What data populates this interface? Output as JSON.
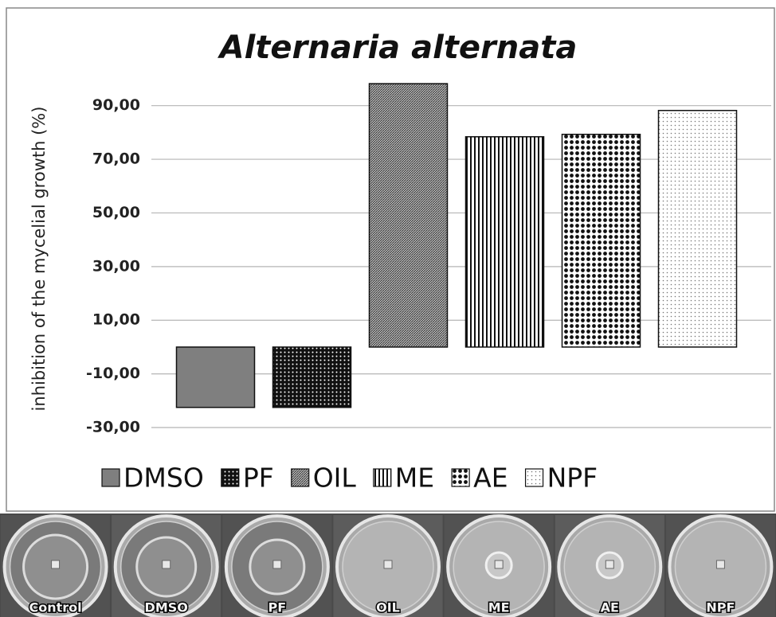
{
  "chart_data": {
    "type": "bar",
    "title": "Alternaria alternata",
    "y_label": "inhibition of the mycelial growth (%)",
    "categories": [
      null
    ],
    "series": [
      {
        "name": "DMSO",
        "color": "#7f7f7f",
        "values": [
          -22.5
        ]
      },
      {
        "name": "PF",
        "color": "#111111",
        "values": [
          -22.5
        ]
      },
      {
        "name": "OIL",
        "color": "#333333",
        "values": [
          98.2
        ]
      },
      {
        "name": "ME",
        "color": "#111111",
        "values": [
          78.4
        ]
      },
      {
        "name": "AE",
        "color": "#111111",
        "values": [
          79.3
        ]
      },
      {
        "name": "NPF",
        "color": "#777777",
        "values": [
          88.2
        ]
      }
    ],
    "ylim": [
      -30,
      100
    ],
    "yticks": [
      {
        "value": -30,
        "label": "-30,00"
      },
      {
        "value": -10,
        "label": "-10,00"
      },
      {
        "value": 10,
        "label": "10,00"
      },
      {
        "value": 30,
        "label": "30,00"
      },
      {
        "value": 50,
        "label": "50,00"
      },
      {
        "value": 70,
        "label": "70,00"
      },
      {
        "value": 90,
        "label": "90,00"
      }
    ],
    "grid": true,
    "legend": "bottom"
  },
  "photo_strip": {
    "labels": [
      "Control",
      "DMSO",
      "PF",
      "OIL",
      "ME",
      "AE",
      "NPF"
    ]
  }
}
